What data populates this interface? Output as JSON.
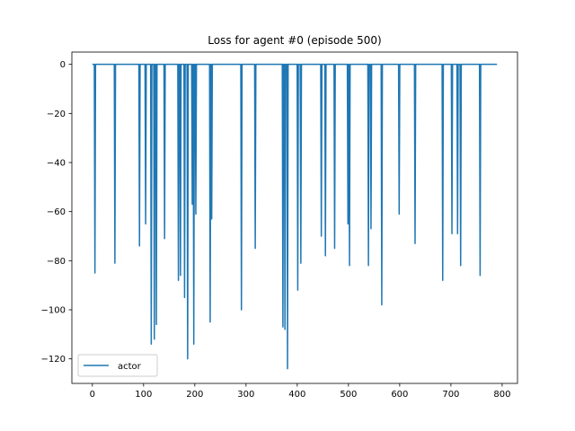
{
  "chart_data": {
    "type": "line",
    "title": "Loss for agent #0 (episode 500)",
    "xlabel": "",
    "ylabel": "",
    "xlim": [
      -40,
      830
    ],
    "ylim": [
      -130,
      5
    ],
    "xticks": [
      0,
      100,
      200,
      300,
      400,
      500,
      600,
      700,
      800
    ],
    "xtick_labels": [
      "0",
      "100",
      "200",
      "300",
      "400",
      "500",
      "600",
      "700",
      "800"
    ],
    "yticks": [
      0,
      -20,
      -40,
      -60,
      -80,
      -100,
      -120
    ],
    "ytick_labels": [
      "0",
      "−20",
      "−40",
      "−60",
      "−80",
      "−100",
      "−120"
    ],
    "grid": false,
    "legend_position": "lower-left",
    "baseline": 0,
    "series": [
      {
        "name": "actor",
        "color": "#1f77b4",
        "x_range": [
          0,
          790
        ],
        "spikes": [
          {
            "x": 5,
            "y": -85
          },
          {
            "x": 44,
            "y": -81
          },
          {
            "x": 92,
            "y": -74
          },
          {
            "x": 104,
            "y": -65
          },
          {
            "x": 115,
            "y": -114
          },
          {
            "x": 121,
            "y": -112
          },
          {
            "x": 125,
            "y": -106
          },
          {
            "x": 141,
            "y": -71
          },
          {
            "x": 168,
            "y": -88
          },
          {
            "x": 172,
            "y": -86
          },
          {
            "x": 180,
            "y": -95
          },
          {
            "x": 186,
            "y": -120
          },
          {
            "x": 195,
            "y": -57
          },
          {
            "x": 198,
            "y": -114
          },
          {
            "x": 202,
            "y": -61
          },
          {
            "x": 230,
            "y": -105
          },
          {
            "x": 233,
            "y": -63
          },
          {
            "x": 291,
            "y": -100
          },
          {
            "x": 318,
            "y": -75
          },
          {
            "x": 372,
            "y": -107
          },
          {
            "x": 376,
            "y": -108
          },
          {
            "x": 381,
            "y": -124
          },
          {
            "x": 401,
            "y": -92
          },
          {
            "x": 407,
            "y": -81
          },
          {
            "x": 447,
            "y": -70
          },
          {
            "x": 455,
            "y": -78
          },
          {
            "x": 473,
            "y": -75
          },
          {
            "x": 499,
            "y": -65
          },
          {
            "x": 502,
            "y": -82
          },
          {
            "x": 539,
            "y": -82
          },
          {
            "x": 544,
            "y": -67
          },
          {
            "x": 565,
            "y": -98
          },
          {
            "x": 599,
            "y": -61
          },
          {
            "x": 630,
            "y": -73
          },
          {
            "x": 684,
            "y": -88
          },
          {
            "x": 702,
            "y": -69
          },
          {
            "x": 713,
            "y": -69
          },
          {
            "x": 719,
            "y": -82
          },
          {
            "x": 757,
            "y": -86
          }
        ]
      }
    ]
  }
}
